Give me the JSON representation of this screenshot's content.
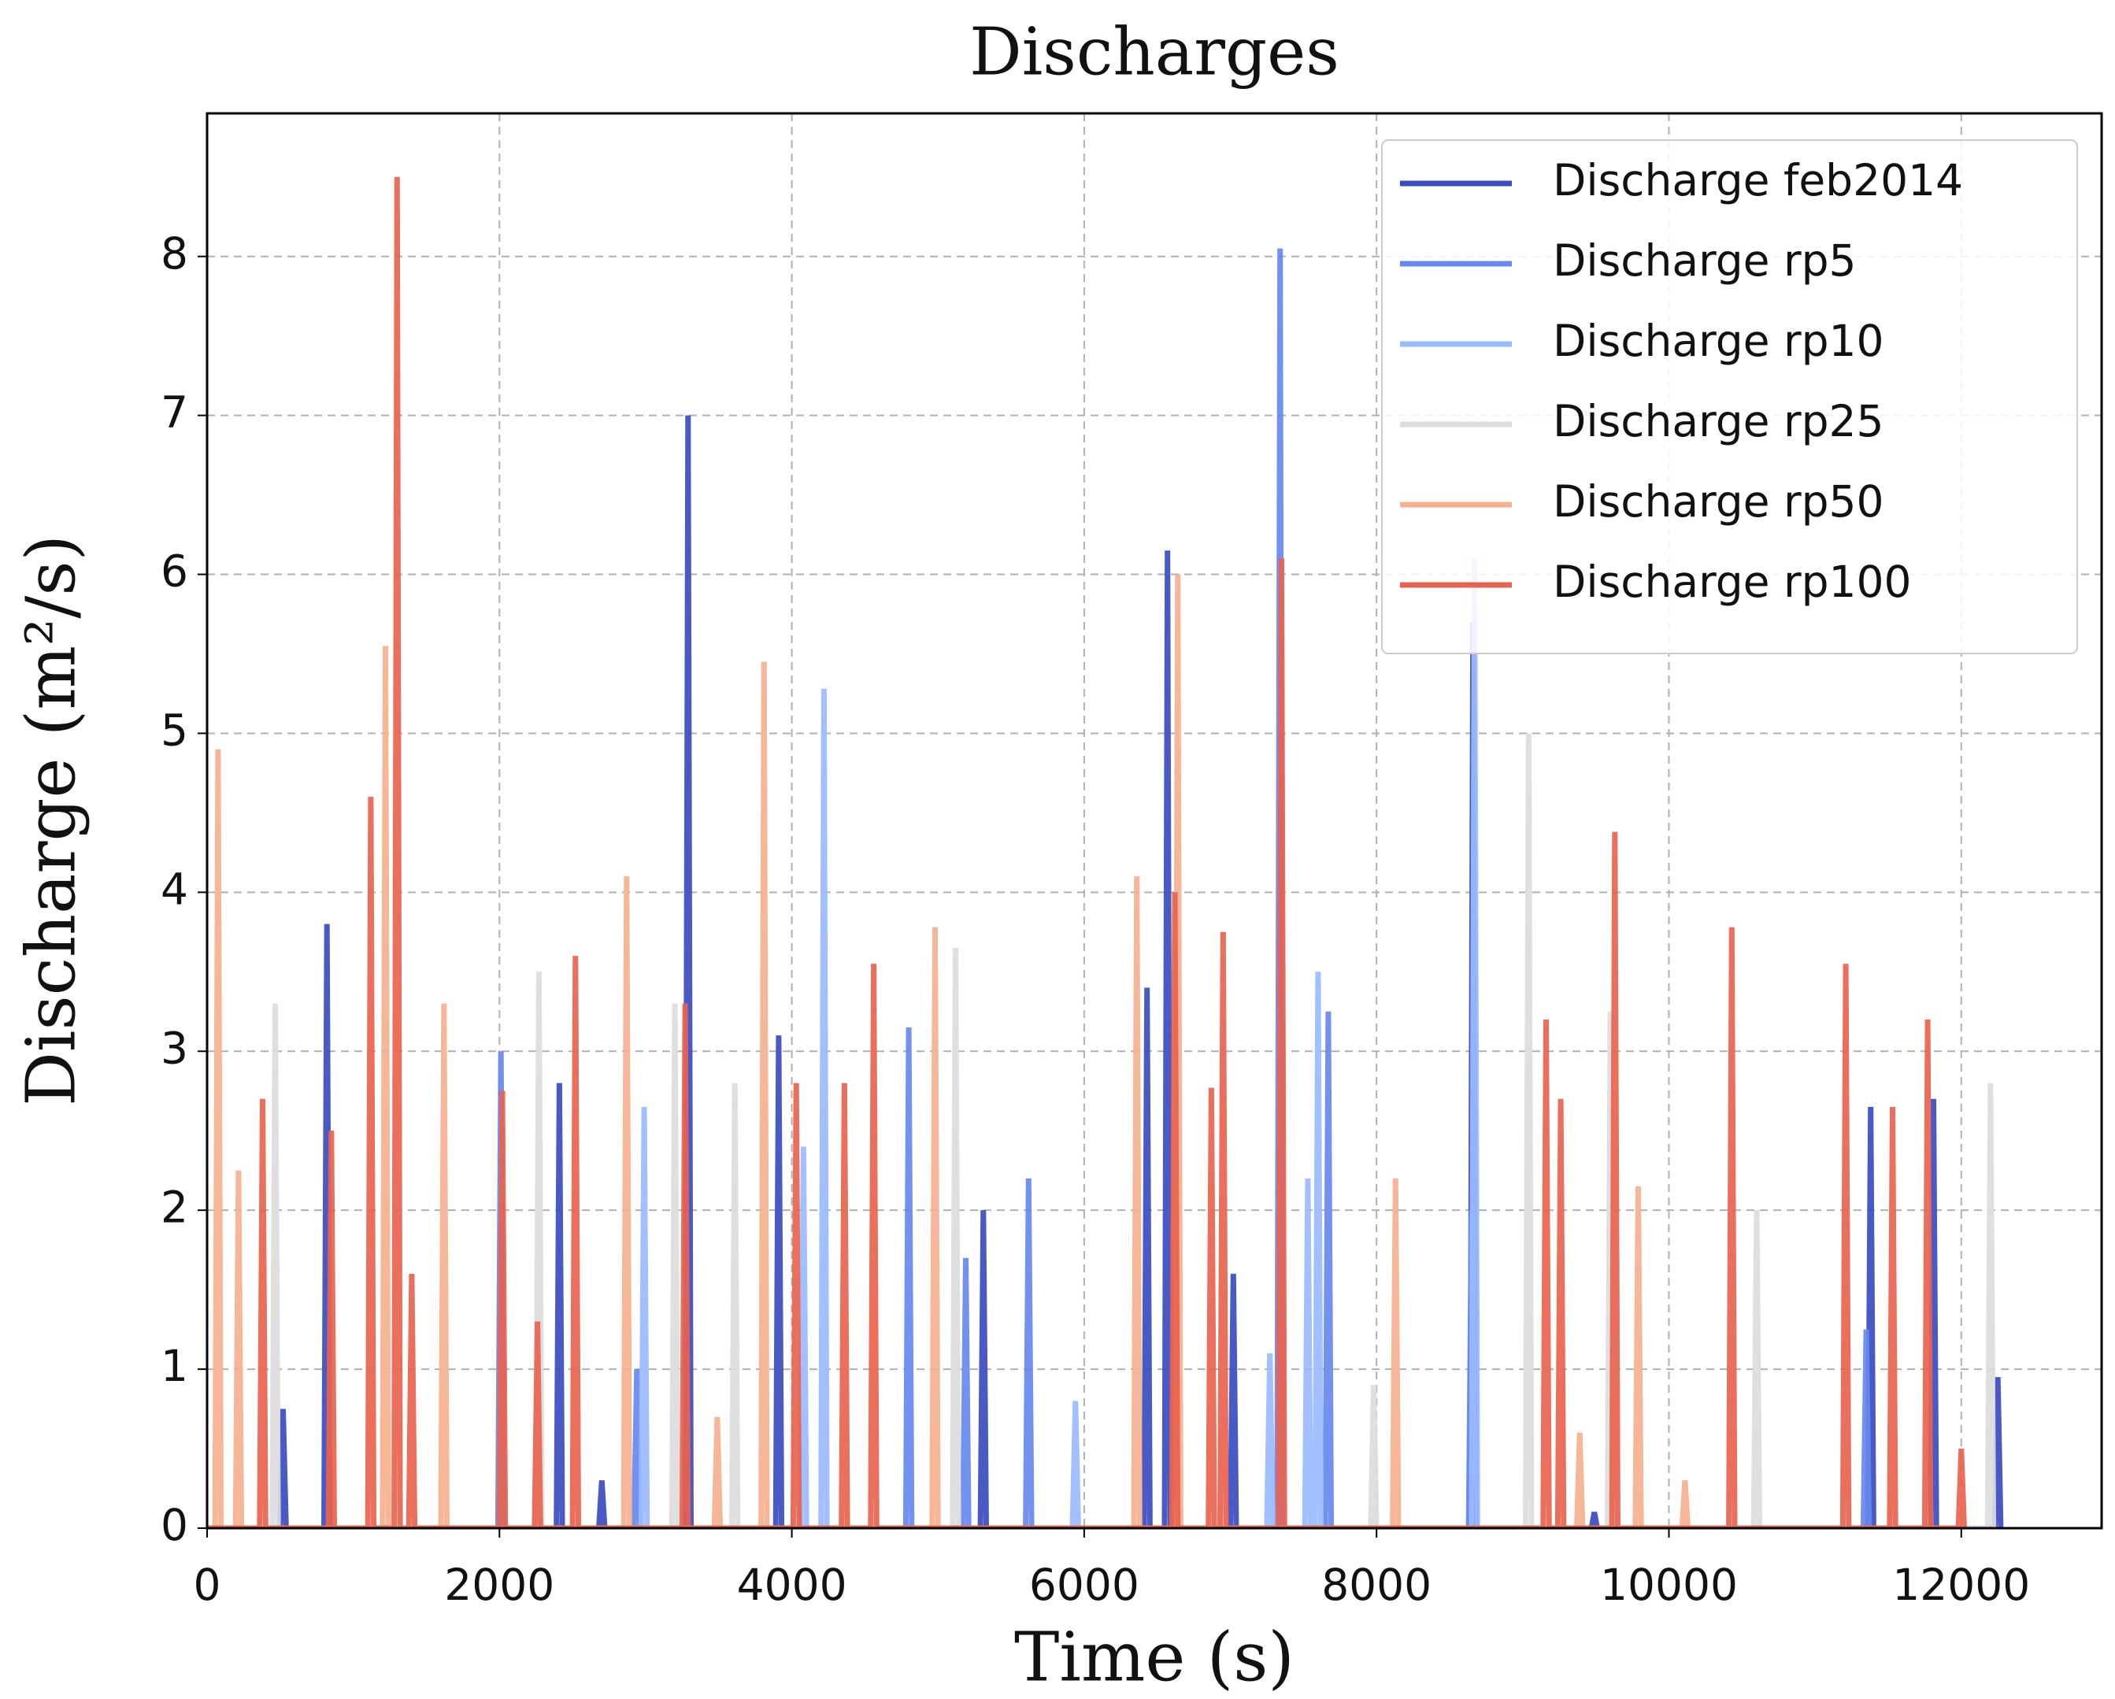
{
  "chart_data": {
    "type": "line",
    "title": "Discharges",
    "xlabel": "Time (s)",
    "ylabel": "Discharge (m²/s)",
    "xlim": [
      0,
      12960
    ],
    "ylim": [
      0,
      8.9
    ],
    "xticks": [
      0,
      2000,
      4000,
      6000,
      8000,
      10000,
      12000
    ],
    "yticks": [
      0,
      1,
      2,
      3,
      4,
      5,
      6,
      7,
      8
    ],
    "grid": true,
    "legend": "upper right",
    "series": [
      {
        "name": "Discharge feb2014",
        "color": "#3b4cc0",
        "x": [
          0,
          500,
          520,
          540,
          800,
          820,
          840,
          2390,
          2410,
          2430,
          2680,
          2700,
          2720,
          3270,
          3290,
          3310,
          3890,
          3910,
          3930,
          5290,
          5310,
          5330,
          6410,
          6430,
          6450,
          6550,
          6570,
          6590,
          7000,
          7020,
          7040,
          8640,
          8660,
          8680,
          9470,
          9490,
          9510,
          11360,
          11380,
          11400,
          11790,
          11810,
          11830,
          12230,
          12250,
          12270
        ],
        "values": [
          0,
          0,
          0.75,
          0,
          0,
          3.8,
          0,
          0,
          2.8,
          0,
          0,
          0.3,
          0,
          0,
          7.0,
          0,
          0,
          3.1,
          0,
          0,
          2.0,
          0,
          0,
          3.4,
          0,
          0,
          6.15,
          0,
          0,
          1.6,
          0,
          0,
          5.7,
          0,
          0,
          0.1,
          0,
          0,
          2.65,
          0,
          0,
          2.7,
          0,
          0,
          0.95,
          0
        ]
      },
      {
        "name": "Discharge rp5",
        "color": "#6788ee",
        "x": [
          0,
          1990,
          2010,
          2030,
          2920,
          2940,
          2960,
          4780,
          4800,
          4820,
          5170,
          5190,
          5210,
          5600,
          5620,
          5640,
          7320,
          7340,
          7360,
          7650,
          7670,
          7690,
          8630,
          8650,
          8670,
          11330,
          11350,
          11370
        ],
        "values": [
          0,
          0,
          3.0,
          0,
          0,
          1.0,
          0,
          0,
          3.15,
          0,
          0,
          1.7,
          0,
          0,
          2.2,
          0,
          0,
          8.05,
          0,
          0,
          3.25,
          0,
          0,
          2.0,
          0,
          0,
          1.25,
          0
        ]
      },
      {
        "name": "Discharge rp10",
        "color": "#9abbff",
        "x": [
          0,
          2970,
          2990,
          3010,
          4060,
          4080,
          4100,
          4200,
          4220,
          4240,
          5920,
          5940,
          5960,
          7250,
          7270,
          7290,
          7510,
          7530,
          7550,
          7580,
          7600,
          7620,
          8650,
          8670,
          8690
        ],
        "values": [
          0,
          0,
          2.65,
          0,
          0,
          2.4,
          0,
          0,
          5.28,
          0,
          0,
          0.8,
          0,
          0,
          1.1,
          0,
          0,
          2.2,
          0,
          0,
          3.5,
          0,
          0,
          6.1,
          0
        ]
      },
      {
        "name": "Discharge rp25",
        "color": "#dcdcdc",
        "x": [
          0,
          446,
          466,
          486,
          2250,
          2270,
          2290,
          3180,
          3200,
          3220,
          3590,
          3610,
          3630,
          5100,
          5120,
          5140,
          7960,
          7980,
          8000,
          9020,
          9040,
          9060,
          9580,
          9600,
          9620,
          10580,
          10600,
          10620,
          12180,
          12200,
          12220
        ],
        "values": [
          0,
          0,
          3.3,
          0,
          0,
          3.5,
          0,
          0,
          3.3,
          0,
          0,
          2.8,
          0,
          0,
          3.65,
          0,
          0,
          0.9,
          0,
          0,
          5.0,
          0,
          0,
          3.25,
          0,
          0,
          2.0,
          0,
          0,
          2.8,
          0
        ]
      },
      {
        "name": "Discharge rp50",
        "color": "#f5b08f",
        "x": [
          0,
          55,
          75,
          95,
          195,
          215,
          235,
          1200,
          1220,
          1240,
          1600,
          1620,
          1640,
          2850,
          2870,
          2890,
          3470,
          3490,
          3510,
          3790,
          3810,
          3830,
          4960,
          4980,
          5000,
          6340,
          6360,
          6380,
          6620,
          6640,
          6660,
          8110,
          8130,
          8150,
          9370,
          9390,
          9410,
          9770,
          9790,
          9810,
          10090,
          10110,
          10130
        ],
        "values": [
          0,
          0,
          4.9,
          0,
          0,
          2.25,
          0,
          0,
          5.55,
          0,
          0,
          3.3,
          0,
          0,
          4.1,
          0,
          0,
          0.7,
          0,
          0,
          5.45,
          0,
          0,
          3.78,
          0,
          0,
          4.1,
          0,
          0,
          6.0,
          0,
          0,
          2.2,
          0,
          0,
          0.6,
          0,
          0,
          2.15,
          0,
          0,
          0.3,
          0
        ]
      },
      {
        "name": "Discharge rp100",
        "color": "#e8634f",
        "x": [
          0,
          360,
          380,
          400,
          830,
          850,
          870,
          1100,
          1120,
          1140,
          1280,
          1300,
          1320,
          1380,
          1400,
          1420,
          2000,
          2020,
          2040,
          2240,
          2260,
          2280,
          2500,
          2520,
          2540,
          3250,
          3270,
          3290,
          4010,
          4030,
          4050,
          4340,
          4360,
          4380,
          4540,
          4560,
          4580,
          6600,
          6620,
          6640,
          6850,
          6870,
          6890,
          6930,
          6950,
          6970,
          7330,
          7350,
          7370,
          9140,
          9160,
          9180,
          9240,
          9260,
          9280,
          9610,
          9630,
          9650,
          10410,
          10430,
          10450,
          11190,
          11210,
          11230,
          11510,
          11530,
          11550,
          11750,
          11770,
          11790,
          11980,
          12000,
          12020
        ],
        "values": [
          0,
          0,
          2.7,
          0,
          0,
          2.5,
          0,
          0,
          4.6,
          0,
          0,
          8.5,
          0,
          0,
          1.6,
          0,
          0,
          2.75,
          0,
          0,
          1.3,
          0,
          0,
          3.6,
          0,
          0,
          3.3,
          0,
          0,
          2.8,
          0,
          0,
          2.8,
          0,
          0,
          3.55,
          0,
          0,
          4.0,
          0,
          0,
          2.77,
          0,
          0,
          3.75,
          0,
          0,
          6.1,
          0,
          0,
          3.2,
          0,
          0,
          2.7,
          0,
          0,
          4.38,
          0,
          0,
          3.78,
          0,
          0,
          3.55,
          0,
          0,
          2.65,
          0,
          0,
          3.2,
          0,
          0,
          0.5,
          0
        ]
      }
    ]
  }
}
